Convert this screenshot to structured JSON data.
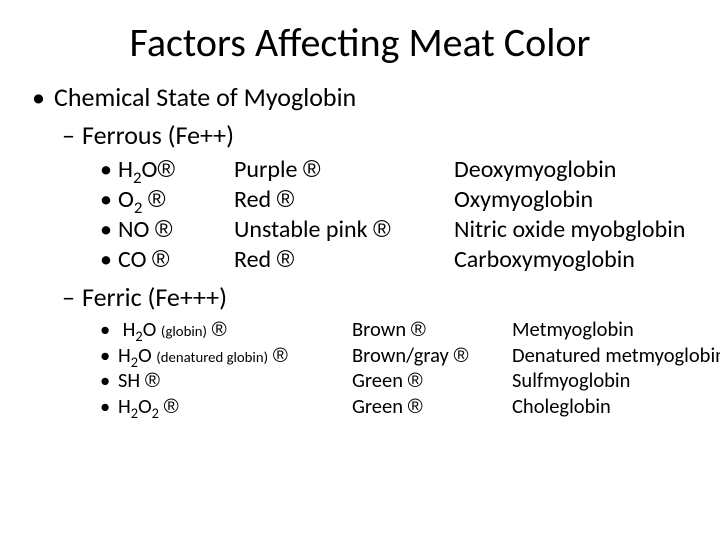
{
  "title": "Factors Affecting Meat Color",
  "level1": "Chemical State of Myoglobin",
  "ferrous": {
    "heading": "Ferrous (Fe++)",
    "rows": [
      {
        "reagent_html": "H<sub>2</sub>O",
        "color": "Purple",
        "product": "Deoxymyoglobin"
      },
      {
        "reagent_html": "O<sub>2</sub>",
        "color": "Red",
        "product": "Oxymyoglobin"
      },
      {
        "reagent_html": "NO",
        "color": "Unstable pink",
        "product": "Nitric oxide myobglobin"
      },
      {
        "reagent_html": "CO",
        "color": "Red",
        "product": "Carboxymyoglobin"
      }
    ]
  },
  "ferric": {
    "heading": "Ferric (Fe+++)",
    "rows": [
      {
        "reagent_html": " H<sub>2</sub>O <span class=\"small\">(globin)</span>",
        "color": "Brown",
        "product": "Metmyoglobin"
      },
      {
        "reagent_html": "H<sub>2</sub>O <span class=\"small\">(denatured globin)</span>",
        "color": "Brown/gray",
        "product": "Denatured metmyoglobin"
      },
      {
        "reagent_html": "SH",
        "color": "Green",
        "product": "Sulfmyoglobin"
      },
      {
        "reagent_html": "H<sub>2</sub>O<sub>2</sub>",
        "color": "Green",
        "product": "Choleglobin"
      }
    ]
  },
  "glyphs": {
    "bullet1": "•",
    "dash": "–",
    "bullet3": "•",
    "arrow": "®"
  },
  "colors": {
    "text": "#000000",
    "background": "#ffffff"
  },
  "typography": {
    "title_fontsize": 40,
    "body_fontsize": 26,
    "ferric_fontsize": 20.5,
    "font_family": "Calibri"
  }
}
